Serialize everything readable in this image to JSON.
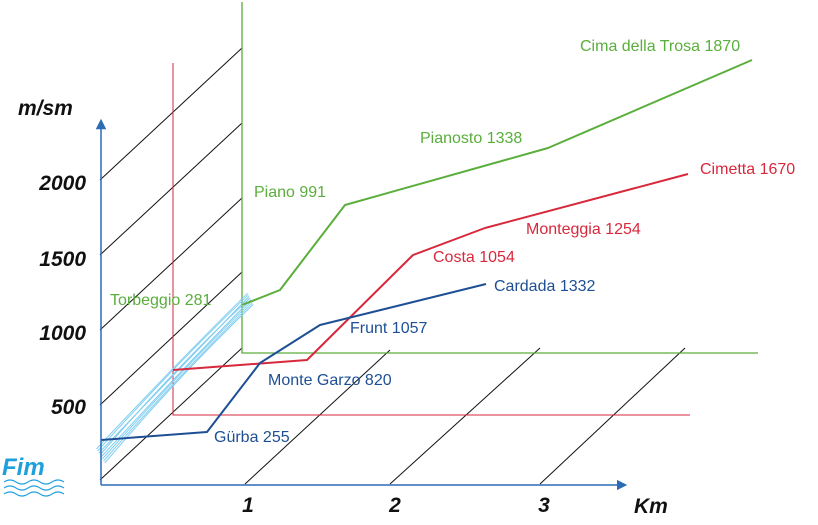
{
  "chart_data": {
    "type": "line",
    "title": "",
    "ylabel": "m/sm",
    "xlabel": "Km",
    "y_ticks": [
      "500",
      "1000",
      "1500",
      "2000"
    ],
    "x_ticks": [
      "1",
      "2",
      "3"
    ],
    "logo": "Fim",
    "colors": {
      "green": "#5aae3c",
      "red": "#d8283c",
      "blue": "#1e4f94",
      "water": "#7fcdf0",
      "axis": "#2b6cb5",
      "grid": "#111111"
    },
    "series": [
      {
        "color": "green",
        "points": [
          {
            "label": "Torbeggio 281"
          },
          {
            "label": ""
          },
          {
            "label": "Piano 991"
          },
          {
            "label": "Pianosto 1338"
          },
          {
            "label": "Cima della Trosa 1870"
          }
        ]
      },
      {
        "color": "red",
        "points": [
          {
            "label": ""
          },
          {
            "label": ""
          },
          {
            "label": "Costa 1054"
          },
          {
            "label": "Monteggia 1254"
          },
          {
            "label": "Cimetta 1670"
          }
        ]
      },
      {
        "color": "blue",
        "points": [
          {
            "label": ""
          },
          {
            "label": "Gürba 255"
          },
          {
            "label": "Monte Garzo 820"
          },
          {
            "label": "Frunt 1057"
          },
          {
            "label": "Cardada 1332"
          }
        ]
      }
    ]
  }
}
